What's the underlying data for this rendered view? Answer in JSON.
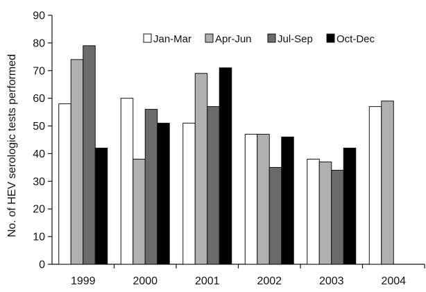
{
  "chart_data": {
    "type": "bar",
    "title": "",
    "xlabel": "",
    "ylabel": "No. of HEV serologic tests performed",
    "ylim": [
      0,
      90
    ],
    "yticks": [
      0,
      10,
      20,
      30,
      40,
      50,
      60,
      70,
      80,
      90
    ],
    "categories": [
      "1999",
      "2000",
      "2001",
      "2002",
      "2003",
      "2004"
    ],
    "series": [
      {
        "name": "Jan-Mar",
        "color": "#ffffff",
        "values": [
          58,
          60,
          51,
          47,
          38,
          57
        ]
      },
      {
        "name": "Apr-Jun",
        "color": "#b0b0b0",
        "values": [
          74,
          38,
          69,
          47,
          37,
          59
        ]
      },
      {
        "name": "Jul-Sep",
        "color": "#6b6b6b",
        "values": [
          79,
          56,
          57,
          35,
          34,
          null
        ]
      },
      {
        "name": "Oct-Dec",
        "color": "#000000",
        "values": [
          42,
          51,
          71,
          46,
          42,
          null
        ]
      }
    ],
    "grid": false,
    "legend_position": "top-right"
  }
}
